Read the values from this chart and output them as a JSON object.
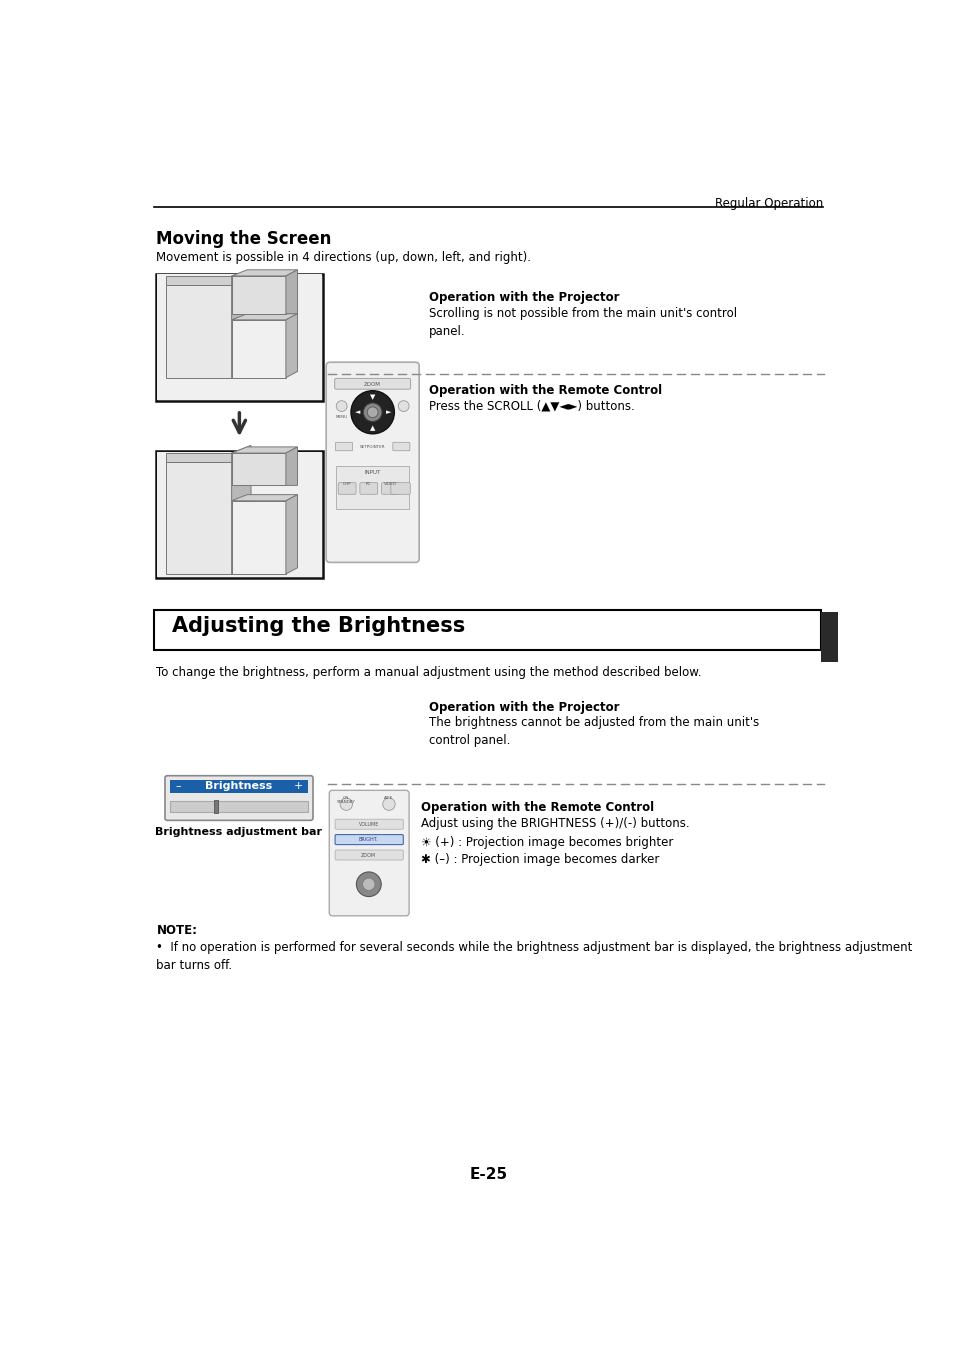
{
  "page_header": "Regular Operation",
  "section1_title": "Moving the Screen",
  "section1_body": "Movement is possible in 4 directions (up, down, left, and right).",
  "op_projector_label1": "Operation with the Projector",
  "op_projector_text1": "Scrolling is not possible from the main unit's control\npanel.",
  "op_remote_label1": "Operation with the Remote Control",
  "op_remote_text1": "Press the SCROLL (▲▼◄►) buttons.",
  "section2_title": "Adjusting the Brightness",
  "section2_body": "To change the brightness, perform a manual adjustment using the method described below.",
  "op_projector_label2": "Operation with the Projector",
  "op_projector_text2": "The brightness cannot be adjusted from the main unit's\ncontrol panel.",
  "brightness_bar_label": "Brightness adjustment bar",
  "op_remote_label2": "Operation with the Remote Control",
  "op_remote_text2": "Adjust using the BRIGHTNESS (+)/(-) buttons.",
  "op_remote_bullet1": "☀ (+) : Projection image becomes brighter",
  "op_remote_bullet2": "✱ (–) : Projection image becomes darker",
  "note_label": "NOTE:",
  "note_text": "If no operation is performed for several seconds while the brightness adjustment bar is displayed, the brightness adjustment\nbar turns off.",
  "page_number": "E-25",
  "bg_color": "#ffffff",
  "text_color": "#000000",
  "header_line_color": "#000000",
  "section2_box_color": "#000000",
  "dashed_line_color": "#888888",
  "brightness_bar_blue": "#1a5fa8",
  "dark_tab_color": "#2a2a2a",
  "gray_light": "#e8e8e8",
  "gray_mid": "#c0c0c0",
  "gray_dark": "#999999",
  "remote_body": "#f0f0f0",
  "remote_edge": "#aaaaaa"
}
